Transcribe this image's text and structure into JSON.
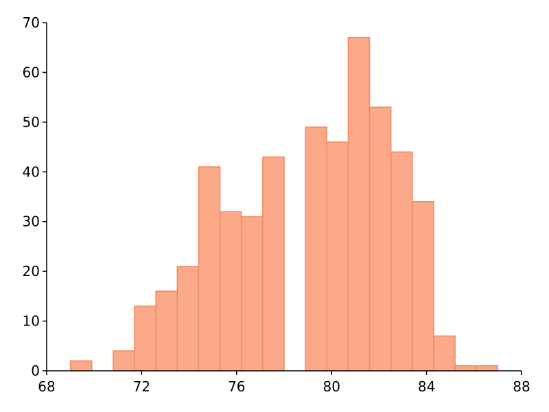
{
  "chart_data": {
    "type": "histogram",
    "bins": [
      69,
      69.9,
      70.8,
      71.7,
      72.6,
      73.5,
      74.4,
      75.3,
      76.2,
      77.1,
      78,
      78.9,
      79.8,
      80.7,
      81.6,
      82.5,
      83.4,
      84.3,
      85.2,
      86.1,
      87
    ],
    "values": [
      2,
      0,
      4,
      13,
      16,
      21,
      41,
      32,
      31,
      43,
      0,
      49,
      46,
      67,
      53,
      44,
      34,
      7,
      1,
      1
    ],
    "color": "#fca98a",
    "edgecolor": "#f08a60",
    "xlim": [
      68,
      88
    ],
    "xticks": [
      68,
      72,
      76,
      80,
      84,
      88
    ],
    "ylim": [
      0,
      70
    ],
    "yticks": [
      0,
      10,
      20,
      30,
      40,
      50,
      60,
      70
    ]
  }
}
